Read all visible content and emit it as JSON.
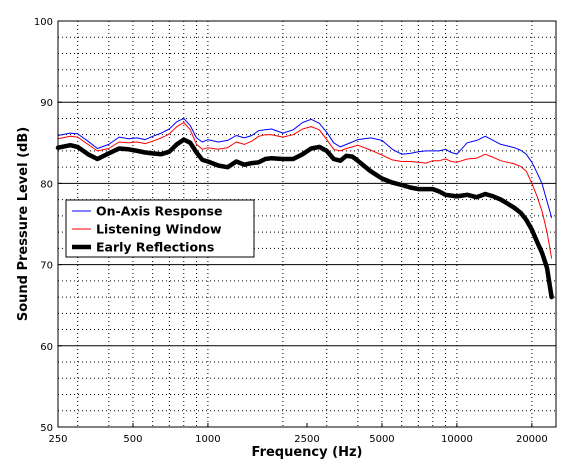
{
  "chart_data": {
    "type": "line",
    "title": "",
    "xlabel": "Frequency (Hz)",
    "ylabel": "Sound Pressure Level (dB)",
    "x_scale": "log",
    "xlim": [
      250,
      25000
    ],
    "ylim": [
      50,
      100
    ],
    "x_ticks": [
      250,
      500,
      1000,
      2500,
      5000,
      10000,
      20000
    ],
    "x_tick_labels": [
      "250",
      "500",
      "1000",
      "2500",
      "5000",
      "10000",
      "20000"
    ],
    "y_ticks": [
      50,
      60,
      70,
      80,
      90,
      100
    ],
    "y_tick_labels": [
      "50",
      "60",
      "70",
      "80",
      "90",
      "100"
    ],
    "grid": true,
    "legend_position": "left",
    "series": [
      {
        "name": "On-Axis Response",
        "color": "#0000ff",
        "stroke": "thin",
        "x": [
          250,
          280,
          300,
          330,
          360,
          400,
          440,
          480,
          520,
          560,
          600,
          650,
          700,
          750,
          800,
          850,
          900,
          950,
          1000,
          1100,
          1200,
          1300,
          1400,
          1500,
          1600,
          1700,
          1800,
          2000,
          2200,
          2400,
          2600,
          2800,
          3000,
          3200,
          3400,
          3600,
          3800,
          4000,
          4500,
          5000,
          5500,
          6000,
          6500,
          7000,
          7500,
          8000,
          8500,
          9000,
          9500,
          10000,
          11000,
          12000,
          13000,
          14000,
          15000,
          16000,
          17000,
          18000,
          19000,
          20000,
          21000,
          22000,
          23000,
          24000
        ],
        "y": [
          85.9,
          86.2,
          86.1,
          85.2,
          84.3,
          84.8,
          85.7,
          85.5,
          85.6,
          85.4,
          85.8,
          86.2,
          86.7,
          87.6,
          88.0,
          87.1,
          85.6,
          85.1,
          85.4,
          85.1,
          85.3,
          85.9,
          85.6,
          85.9,
          86.5,
          86.6,
          86.7,
          86.2,
          86.6,
          87.5,
          87.9,
          87.4,
          86.3,
          85.0,
          84.5,
          84.8,
          85.1,
          85.4,
          85.6,
          85.3,
          84.2,
          83.6,
          83.7,
          83.9,
          84.0,
          84.0,
          84.0,
          84.2,
          83.8,
          83.6,
          85.0,
          85.3,
          85.8,
          85.3,
          84.8,
          84.6,
          84.4,
          84.1,
          83.6,
          82.6,
          81.3,
          79.9,
          77.8,
          75.8
        ]
      },
      {
        "name": "Listening Window",
        "color": "#ff0000",
        "stroke": "thin",
        "x": [
          250,
          280,
          300,
          330,
          360,
          400,
          440,
          480,
          520,
          560,
          600,
          650,
          700,
          750,
          800,
          850,
          900,
          950,
          1000,
          1100,
          1200,
          1300,
          1400,
          1500,
          1600,
          1700,
          1800,
          2000,
          2200,
          2400,
          2600,
          2800,
          3000,
          3200,
          3400,
          3600,
          3800,
          4000,
          4500,
          5000,
          5500,
          6000,
          6500,
          7000,
          7500,
          8000,
          8500,
          9000,
          9500,
          10000,
          11000,
          12000,
          13000,
          14000,
          15000,
          16000,
          17000,
          18000,
          19000,
          20000,
          21000,
          22000,
          23000,
          24000
        ],
        "y": [
          85.5,
          85.8,
          85.7,
          84.8,
          84.0,
          84.3,
          85.1,
          85.0,
          85.1,
          84.9,
          85.2,
          85.6,
          86.1,
          87.0,
          87.5,
          86.6,
          84.8,
          84.2,
          84.4,
          84.2,
          84.4,
          85.1,
          84.8,
          85.2,
          85.8,
          86.0,
          86.0,
          85.7,
          86.0,
          86.7,
          87.0,
          86.6,
          85.4,
          84.2,
          84.0,
          84.3,
          84.5,
          84.7,
          84.1,
          83.5,
          82.9,
          82.7,
          82.7,
          82.6,
          82.5,
          82.8,
          82.8,
          83.0,
          82.7,
          82.6,
          83.0,
          83.1,
          83.6,
          83.2,
          82.8,
          82.6,
          82.4,
          82.1,
          81.5,
          80.0,
          78.4,
          76.5,
          74.0,
          70.8
        ]
      },
      {
        "name": "Early Reflections",
        "color": "#000000",
        "stroke": "thick",
        "x": [
          250,
          280,
          300,
          330,
          360,
          400,
          440,
          480,
          520,
          560,
          600,
          650,
          700,
          750,
          800,
          850,
          900,
          950,
          1000,
          1100,
          1200,
          1300,
          1400,
          1500,
          1600,
          1700,
          1800,
          2000,
          2200,
          2400,
          2600,
          2800,
          3000,
          3200,
          3400,
          3600,
          3800,
          4000,
          4500,
          5000,
          5500,
          6000,
          6500,
          7000,
          7500,
          8000,
          8500,
          9000,
          9500,
          10000,
          11000,
          12000,
          13000,
          14000,
          15000,
          16000,
          17000,
          18000,
          19000,
          20000,
          21000,
          22000,
          23000,
          24000
        ],
        "y": [
          84.4,
          84.7,
          84.5,
          83.6,
          83.0,
          83.7,
          84.3,
          84.2,
          84.0,
          83.8,
          83.7,
          83.6,
          83.9,
          84.8,
          85.4,
          85.0,
          83.8,
          82.9,
          82.7,
          82.2,
          82.0,
          82.7,
          82.3,
          82.5,
          82.6,
          83.0,
          83.1,
          83.0,
          83.0,
          83.6,
          84.3,
          84.5,
          84.0,
          83.0,
          82.8,
          83.4,
          83.3,
          82.8,
          81.5,
          80.6,
          80.1,
          79.8,
          79.5,
          79.3,
          79.3,
          79.3,
          79.0,
          78.6,
          78.5,
          78.4,
          78.6,
          78.3,
          78.7,
          78.4,
          78.0,
          77.5,
          77.0,
          76.4,
          75.5,
          74.3,
          72.8,
          71.4,
          69.6,
          66.0
        ]
      }
    ]
  }
}
